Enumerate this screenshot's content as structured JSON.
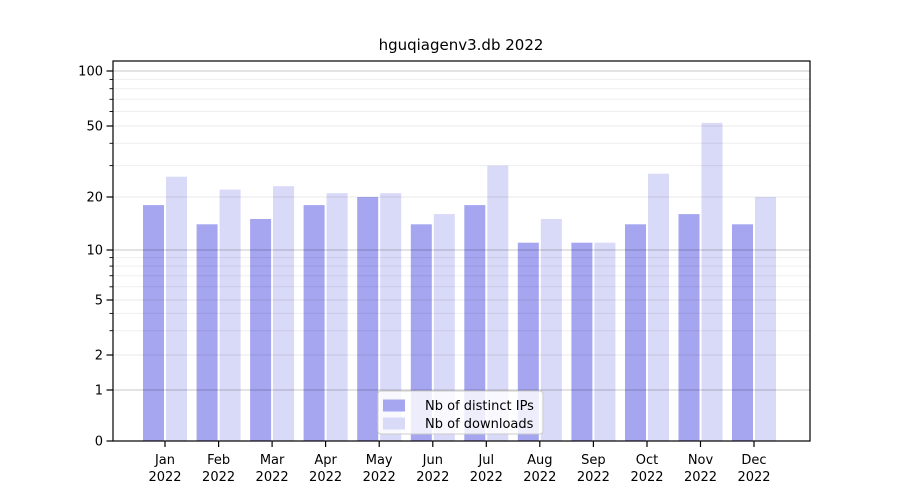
{
  "figure": {
    "title": "hguqiagenv3.db 2022"
  },
  "chart_data": {
    "type": "bar",
    "title": "hguqiagenv3.db 2022",
    "categories": [
      "Jan",
      "Feb",
      "Mar",
      "Apr",
      "May",
      "Jun",
      "Jul",
      "Aug",
      "Sep",
      "Oct",
      "Nov",
      "Dec"
    ],
    "year_label": "2022",
    "series": [
      {
        "name": "Nb of distinct IPs",
        "color": "#a5a5f0",
        "values": [
          18,
          14,
          15,
          18,
          20,
          14,
          18,
          11,
          11,
          14,
          16,
          14
        ]
      },
      {
        "name": "Nb of downloads",
        "color": "#d9d9f8",
        "values": [
          26,
          22,
          23,
          21,
          21,
          16,
          30,
          15,
          11,
          27,
          52,
          20
        ]
      }
    ],
    "yscale": "log-like with linear segment to 0",
    "ytick_labels": [
      "100",
      "50",
      "20",
      "10",
      "5",
      "2",
      "1",
      "0"
    ],
    "ytick_values": [
      100,
      50,
      20,
      10,
      5,
      2,
      1,
      0
    ],
    "minor_grid_values": [
      3,
      4,
      6,
      7,
      8,
      9,
      30,
      40,
      60,
      70,
      80,
      90
    ],
    "decade_grid_values": [
      1,
      10,
      100
    ],
    "ylim": [
      0,
      115
    ],
    "xlabel": "",
    "ylabel": "",
    "grid": true,
    "legend": {
      "position": "lower-center",
      "labels": [
        "Nb of distinct IPs",
        "Nb of downloads"
      ]
    }
  }
}
